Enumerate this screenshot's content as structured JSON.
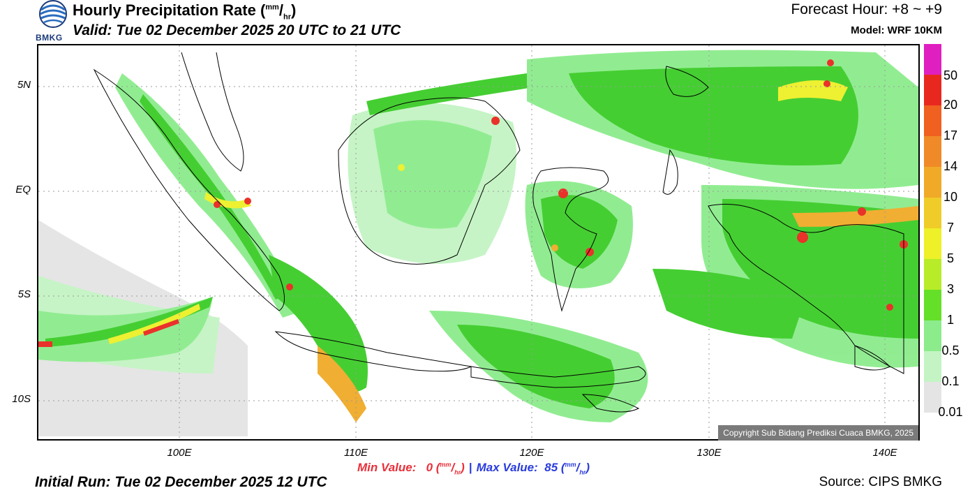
{
  "header": {
    "logo_text": "BMKG",
    "title": "Hourly Precipitation Rate (",
    "title_unit_num": "mm",
    "title_unit_den": "hr",
    "title_close": ")",
    "valid": "Valid: Tue 02 December 2025 20 UTC to 21 UTC",
    "forecast_hour": "Forecast Hour: +8 ~ +9",
    "model": "Model: WRF 10KM"
  },
  "map": {
    "lat_labels": [
      "5N",
      "EQ",
      "5S",
      "10S"
    ],
    "lon_labels": [
      "100E",
      "110E",
      "120E",
      "130E",
      "140E"
    ],
    "copyright": "Copyright Sub Bidang Prediksi Cuaca BMKG, 2025"
  },
  "legend": {
    "labels": [
      "50",
      "20",
      "17",
      "14",
      "10",
      "7",
      "5",
      "3",
      "1",
      "0.5",
      "0.1",
      "0.01"
    ],
    "colors": [
      "#e01fc0",
      "#e8281f",
      "#f06020",
      "#f08a28",
      "#f0aa28",
      "#f0cc28",
      "#eef028",
      "#b8ec28",
      "#64e028",
      "#3ccc28",
      "#8cec8c",
      "#c4f4c4",
      "#e4e4e4"
    ]
  },
  "footer": {
    "min_label": "Min Value:",
    "min_value": "0",
    "max_label": "Max Value:",
    "max_value": "85",
    "unit_num": "mm",
    "unit_den": "hr",
    "separator": "|",
    "initial_run": "Initial Run: Tue 02 December 2025 12 UTC",
    "source": "Source: CIPS BMKG"
  }
}
